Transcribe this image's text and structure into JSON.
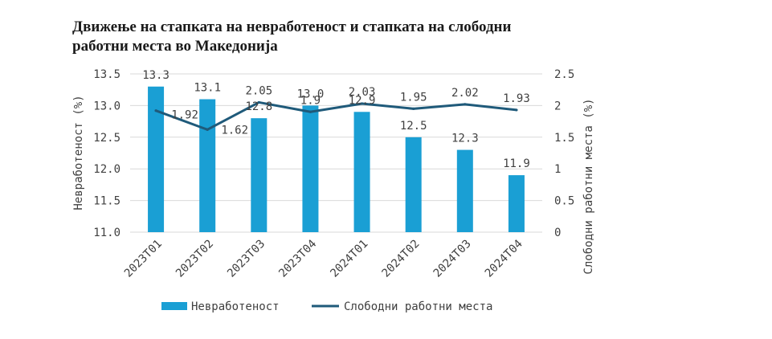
{
  "title": "Движење на стапката на невработеност и стапката на слободни работни места во Македонија",
  "chart_data": {
    "type": "bar",
    "categories": [
      "2023Т01",
      "2023Т02",
      "2023Т03",
      "2023Т04",
      "2024Т01",
      "2024Т02",
      "2024Т03",
      "2024Т04"
    ],
    "series": [
      {
        "name": "Невработеност",
        "type": "bar",
        "axis": "left",
        "color": "#1a9fd4",
        "values": [
          13.3,
          13.1,
          12.8,
          13.0,
          12.9,
          12.5,
          12.3,
          11.9
        ],
        "labels": [
          "13.3",
          "13.1",
          "12.8",
          "13.0",
          "12.9",
          "12.5",
          "12.3",
          "11.9"
        ]
      },
      {
        "name": "Слободни работни места",
        "type": "line",
        "axis": "right",
        "color": "#1f5a7a",
        "values": [
          1.92,
          1.62,
          2.05,
          1.9,
          2.03,
          1.95,
          2.02,
          1.93
        ],
        "labels": [
          "1.92",
          "1.62",
          "2.05",
          "1.9",
          "2.03",
          "1.95",
          "2.02",
          "1.93"
        ]
      }
    ],
    "y_left": {
      "label": "Невработеност (%)",
      "lim": [
        11.0,
        13.5
      ],
      "ticks": [
        "11.0",
        "11.5",
        "12.0",
        "12.5",
        "13.0",
        "13.5"
      ]
    },
    "y_right": {
      "label": "Слободни работни места (%)",
      "lim": [
        0,
        2.5
      ],
      "ticks": [
        "0",
        "0.5",
        "1",
        "1.5",
        "2",
        "2.5"
      ]
    },
    "grid": true,
    "legend_position": "bottom"
  }
}
